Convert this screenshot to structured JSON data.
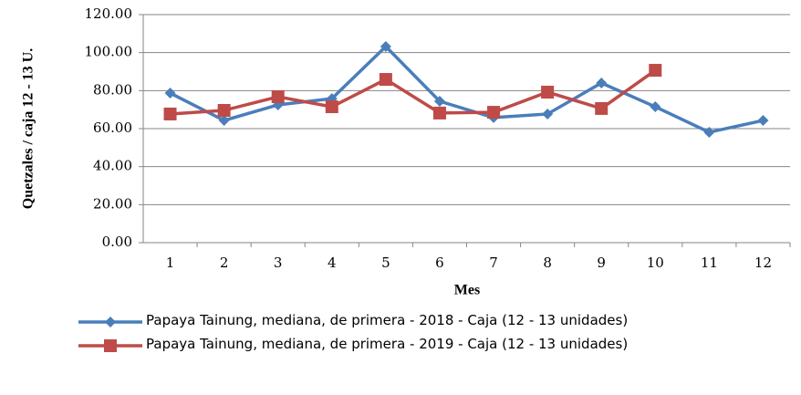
{
  "chart_data": {
    "type": "line",
    "x_label": "Mes",
    "y_label": "Quetzales / caja 12 - 13 U.",
    "categories": [
      "1",
      "2",
      "3",
      "4",
      "5",
      "6",
      "7",
      "8",
      "9",
      "10",
      "11",
      "12"
    ],
    "series": [
      {
        "name": "Papaya Tainung, mediana, de primera - 2018 - Caja (12 - 13 unidades)",
        "color": "#4a7ebb",
        "marker": "diamond",
        "values": [
          78.7,
          64.3,
          72.5,
          75.8,
          103.2,
          74.4,
          65.8,
          67.7,
          84.0,
          71.5,
          58.1,
          64.3
        ]
      },
      {
        "name": "Papaya Tainung, mediana, de primera - 2019 - Caja (12 - 13 unidades)",
        "color": "#be4b48",
        "marker": "square",
        "values": [
          67.7,
          69.6,
          76.8,
          71.5,
          85.9,
          68.2,
          68.6,
          79.2,
          70.6,
          90.7,
          null,
          null
        ]
      }
    ],
    "ylim": [
      0,
      120
    ],
    "yticks": [
      {
        "value": 0,
        "label": "0.00"
      },
      {
        "value": 20,
        "label": "20.00"
      },
      {
        "value": 40,
        "label": "40.00"
      },
      {
        "value": 60,
        "label": "60.00"
      },
      {
        "value": 80,
        "label": "80.00"
      },
      {
        "value": 100,
        "label": "100.00"
      },
      {
        "value": 120,
        "label": "120.00"
      }
    ],
    "grid": true,
    "legend": "bottom"
  }
}
